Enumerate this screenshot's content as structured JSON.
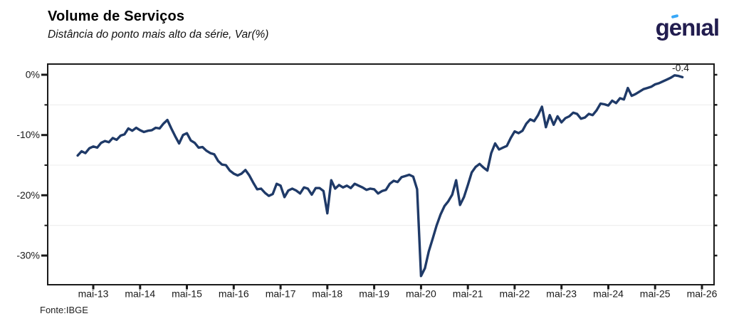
{
  "header": {
    "title": "Volume de Serviços",
    "subtitle": "Distância do ponto mais alto da série, Var(%)"
  },
  "logo": {
    "g": "g",
    "e": "e",
    "rest": "nıal",
    "text_color": "#221D4F",
    "accent_color": "#38A8F8"
  },
  "footer": {
    "source": "Fonte:IBGE"
  },
  "chart_data": {
    "type": "line",
    "title": "Volume de Serviços",
    "subtitle": "Distância do ponto mais alto da série, Var(%)",
    "legend": "none",
    "grid": "horizontal-minor-only",
    "line_color": "#1F3A68",
    "axis_color": "#1a1a1a",
    "gridline_color": "#ececec",
    "last_point_label": "-0.4",
    "x_tick_labels": [
      "mai-13",
      "mai-14",
      "mai-15",
      "mai-16",
      "mai-17",
      "mai-18",
      "mai-19",
      "mai-20",
      "mai-21",
      "mai-22",
      "mai-23",
      "mai-24",
      "mai-25",
      "mai-26"
    ],
    "y_tick_labels": [
      "0%",
      "-10%",
      "-20%",
      "-30%"
    ],
    "y_major_ticks": [
      0,
      -10,
      -20,
      -30
    ],
    "y_minor_ticks": [
      -5,
      -15,
      -25
    ],
    "ylim": [
      -34.8,
      1.8
    ],
    "series": [
      {
        "name": "Distância do ponto mais alto da série (%)",
        "start": "jan-13",
        "frequency": "monthly",
        "values": [
          -13.4,
          -12.7,
          -13.0,
          -12.2,
          -11.9,
          -12.1,
          -11.3,
          -11.0,
          -11.2,
          -10.5,
          -10.8,
          -10.1,
          -9.9,
          -8.9,
          -9.3,
          -8.8,
          -9.2,
          -9.5,
          -9.3,
          -9.2,
          -8.8,
          -8.9,
          -8.1,
          -7.5,
          -8.9,
          -10.2,
          -11.4,
          -10.0,
          -9.7,
          -10.9,
          -11.3,
          -12.1,
          -12.0,
          -12.6,
          -13.0,
          -13.2,
          -14.3,
          -14.9,
          -15.0,
          -15.9,
          -16.4,
          -16.7,
          -16.4,
          -15.8,
          -16.7,
          -17.9,
          -19.0,
          -18.9,
          -19.6,
          -20.1,
          -19.8,
          -18.1,
          -18.4,
          -20.3,
          -19.2,
          -18.9,
          -19.2,
          -19.7,
          -18.7,
          -18.9,
          -19.9,
          -18.8,
          -18.8,
          -19.3,
          -23.0,
          -17.5,
          -18.9,
          -18.3,
          -18.7,
          -18.4,
          -18.8,
          -18.1,
          -18.4,
          -18.7,
          -19.1,
          -18.9,
          -19.0,
          -19.7,
          -19.3,
          -19.1,
          -18.1,
          -17.6,
          -17.8,
          -17.0,
          -16.8,
          -16.6,
          -16.9,
          -19.0,
          -33.4,
          -32.1,
          -29.3,
          -27.2,
          -25.0,
          -23.2,
          -21.8,
          -21.0,
          -19.9,
          -17.5,
          -21.6,
          -20.3,
          -18.3,
          -16.2,
          -15.3,
          -14.8,
          -15.4,
          -15.9,
          -13.0,
          -11.4,
          -12.4,
          -12.1,
          -11.8,
          -10.5,
          -9.4,
          -9.7,
          -9.3,
          -8.1,
          -7.4,
          -7.7,
          -6.7,
          -5.3,
          -8.7,
          -6.7,
          -8.3,
          -6.9,
          -7.9,
          -7.2,
          -6.9,
          -6.3,
          -6.5,
          -7.3,
          -7.1,
          -6.5,
          -6.7,
          -5.9,
          -4.8,
          -4.9,
          -5.1,
          -4.3,
          -4.7,
          -3.9,
          -4.1,
          -2.2,
          -3.5,
          -3.2,
          -2.8,
          -2.4,
          -2.2,
          -2.0,
          -1.6,
          -1.4,
          -1.1,
          -0.8,
          -0.5,
          -0.1,
          -0.2,
          -0.4
        ]
      }
    ]
  }
}
